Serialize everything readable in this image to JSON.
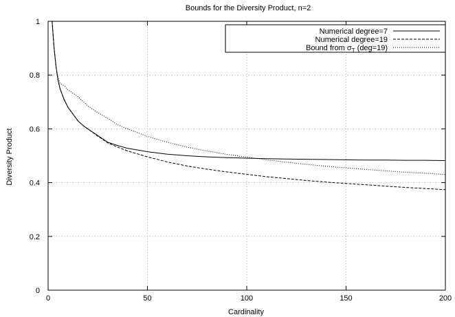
{
  "chart_data": {
    "type": "line",
    "title": "Bounds for the Diversity Product, n=2",
    "xlabel": "Cardinality",
    "ylabel": "Diversity Product",
    "xlim": [
      0,
      200
    ],
    "ylim": [
      0,
      1
    ],
    "x_ticks": [
      0,
      50,
      100,
      150,
      200
    ],
    "x_tick_labels": [
      "0",
      "50",
      "100",
      "150",
      "200"
    ],
    "y_ticks": [
      0,
      0.2,
      0.4,
      0.6,
      0.8,
      1
    ],
    "y_tick_labels": [
      "0",
      "0.2",
      "0.4",
      "0.6",
      "0.8",
      "1"
    ],
    "grid": true,
    "legend_position": "top-right",
    "legend_prefix_3": "Bound from σ",
    "legend_sub_3": "T",
    "legend_suffix_3": " (deg=19)",
    "series": [
      {
        "name": "Numerical degree=7",
        "style": "solid",
        "x": [
          2,
          3,
          4,
          5,
          6,
          8,
          10,
          12,
          15,
          18,
          20,
          25,
          30,
          35,
          40,
          50,
          60,
          70,
          80,
          90,
          100,
          110,
          120,
          130,
          140,
          150,
          160,
          170,
          180,
          190,
          200
        ],
        "y": [
          1.0,
          0.9,
          0.83,
          0.78,
          0.75,
          0.71,
          0.68,
          0.66,
          0.63,
          0.61,
          0.6,
          0.575,
          0.55,
          0.538,
          0.528,
          0.515,
          0.506,
          0.5,
          0.496,
          0.493,
          0.491,
          0.489,
          0.488,
          0.487,
          0.486,
          0.485,
          0.484,
          0.484,
          0.483,
          0.483,
          0.482
        ]
      },
      {
        "name": "Numerical degree=19",
        "style": "dashed",
        "x": [
          2,
          3,
          4,
          5,
          6,
          8,
          10,
          12,
          15,
          18,
          20,
          25,
          30,
          35,
          40,
          50,
          60,
          70,
          80,
          90,
          100,
          110,
          120,
          130,
          140,
          150,
          160,
          170,
          180,
          190,
          200
        ],
        "y": [
          1.0,
          0.9,
          0.83,
          0.78,
          0.75,
          0.71,
          0.68,
          0.66,
          0.63,
          0.61,
          0.6,
          0.573,
          0.548,
          0.532,
          0.518,
          0.496,
          0.477,
          0.462,
          0.45,
          0.44,
          0.431,
          0.422,
          0.415,
          0.408,
          0.402,
          0.397,
          0.392,
          0.387,
          0.382,
          0.378,
          0.374
        ]
      },
      {
        "name": "Bound from σT (deg=19)",
        "style": "dotted",
        "x": [
          2,
          3,
          4,
          5,
          6,
          8,
          10,
          15,
          20,
          25,
          30,
          35,
          40,
          50,
          60,
          70,
          80,
          90,
          100,
          110,
          120,
          130,
          140,
          150,
          160,
          170,
          180,
          190,
          200
        ],
        "y": [
          1.0,
          0.9,
          0.83,
          0.79,
          0.77,
          0.76,
          0.745,
          0.72,
          0.685,
          0.66,
          0.64,
          0.615,
          0.6,
          0.572,
          0.55,
          0.532,
          0.518,
          0.505,
          0.495,
          0.485,
          0.476,
          0.468,
          0.461,
          0.455,
          0.449,
          0.444,
          0.439,
          0.435,
          0.43
        ]
      }
    ]
  }
}
